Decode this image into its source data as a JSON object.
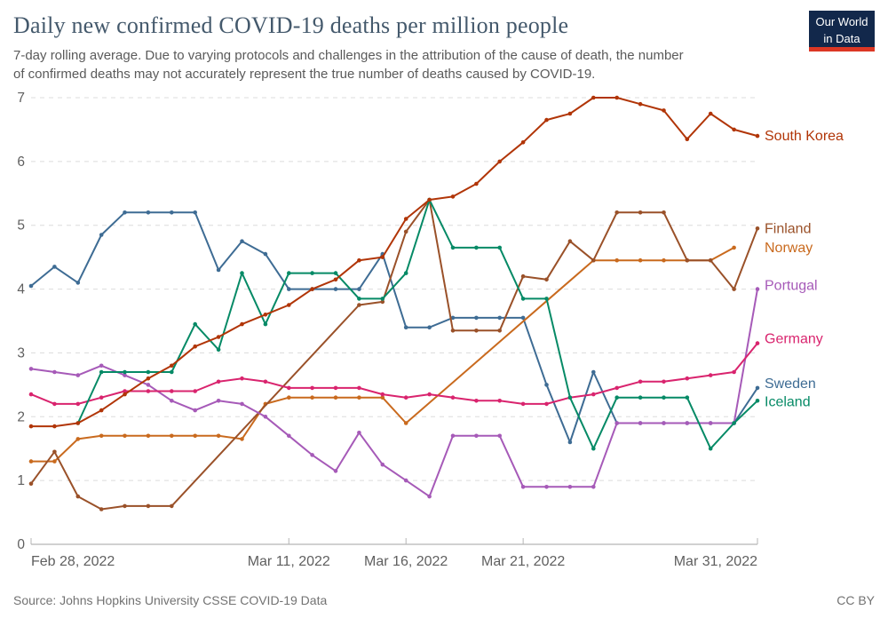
{
  "header": {
    "title": "Daily new confirmed COVID-19 deaths per million people",
    "subtitle_line1": "7-day rolling average. Due to varying protocols and challenges in the attribution of the cause of death, the number",
    "subtitle_line2": "of confirmed deaths may not accurately represent the true number of deaths caused by COVID-19.",
    "logo": {
      "line1": "Our World",
      "line2": "in Data",
      "bg_color": "#12284b",
      "stripe_color": "#dc3724"
    }
  },
  "footer": {
    "source": "Source: Johns Hopkins University CSSE COVID-19 Data",
    "license": "CC BY"
  },
  "chart_data": {
    "type": "line",
    "title": "Daily new confirmed COVID-19 deaths per million people",
    "ylim": [
      0,
      7
    ],
    "yticks": [
      0,
      1,
      2,
      3,
      4,
      5,
      6,
      7
    ],
    "grid": "horizontal-dashed",
    "legend_position": "right-of-line-ends",
    "x": [
      "Feb 28",
      "Mar 1",
      "Mar 2",
      "Mar 3",
      "Mar 4",
      "Mar 5",
      "Mar 6",
      "Mar 7",
      "Mar 8",
      "Mar 9",
      "Mar 10",
      "Mar 11",
      "Mar 12",
      "Mar 13",
      "Mar 14",
      "Mar 15",
      "Mar 16",
      "Mar 17",
      "Mar 18",
      "Mar 19",
      "Mar 20",
      "Mar 21",
      "Mar 22",
      "Mar 23",
      "Mar 24",
      "Mar 25",
      "Mar 26",
      "Mar 27",
      "Mar 28",
      "Mar 29",
      "Mar 30",
      "Mar 31"
    ],
    "xticks": [
      {
        "label": "Feb 28, 2022",
        "index": 0,
        "anchor": "start"
      },
      {
        "label": "Mar 11, 2022",
        "index": 11,
        "anchor": "middle"
      },
      {
        "label": "Mar 16, 2022",
        "index": 16,
        "anchor": "middle"
      },
      {
        "label": "Mar 21, 2022",
        "index": 21,
        "anchor": "middle"
      },
      {
        "label": "Mar 31, 2022",
        "index": 31,
        "anchor": "end"
      }
    ],
    "gap_note": "null values are data gaps drawn as straight interpolated segments without markers",
    "series": [
      {
        "id": "sweden",
        "name": "Sweden",
        "color": "#3e6c94",
        "label_dy": -5,
        "values": [
          4.05,
          4.35,
          4.1,
          4.85,
          5.2,
          5.2,
          5.2,
          5.2,
          4.3,
          4.75,
          4.55,
          4.0,
          4.0,
          4.0,
          4.0,
          4.55,
          3.4,
          3.4,
          3.55,
          3.55,
          3.55,
          3.55,
          2.5,
          1.6,
          2.7,
          1.9,
          1.9,
          1.9,
          1.9,
          1.9,
          1.9,
          2.45
        ]
      },
      {
        "id": "norway",
        "name": "Norway",
        "color": "#c96a1e",
        "label_dy": 0,
        "values": [
          1.3,
          1.3,
          1.65,
          1.7,
          1.7,
          1.7,
          1.7,
          1.7,
          1.7,
          1.65,
          2.2,
          2.3,
          2.3,
          2.3,
          2.3,
          2.3,
          1.9,
          null,
          null,
          null,
          null,
          null,
          null,
          null,
          4.45,
          4.45,
          4.45,
          4.45,
          4.45,
          4.45,
          4.65,
          null
        ]
      },
      {
        "id": "finland",
        "name": "Finland",
        "color": "#9a5129",
        "label_dy": 0,
        "values": [
          0.95,
          1.45,
          0.75,
          0.55,
          0.6,
          0.6,
          0.6,
          null,
          null,
          null,
          null,
          null,
          null,
          null,
          3.75,
          3.8,
          4.9,
          5.4,
          3.35,
          3.35,
          3.35,
          4.2,
          4.15,
          4.75,
          4.45,
          5.2,
          5.2,
          5.2,
          4.45,
          4.45,
          4.0,
          4.95
        ]
      },
      {
        "id": "portugal",
        "name": "Portugal",
        "color": "#a65ab8",
        "label_dy": -4,
        "values": [
          2.75,
          2.7,
          2.65,
          2.8,
          2.65,
          2.5,
          2.25,
          2.1,
          2.25,
          2.2,
          2.0,
          1.7,
          1.4,
          1.15,
          1.75,
          1.25,
          1.0,
          0.75,
          1.7,
          1.7,
          1.7,
          0.9,
          0.9,
          0.9,
          0.9,
          1.9,
          1.9,
          1.9,
          1.9,
          1.9,
          1.9,
          4.0
        ]
      },
      {
        "id": "germany",
        "name": "Germany",
        "color": "#d9246e",
        "label_dy": -5,
        "values": [
          2.35,
          2.2,
          2.2,
          2.3,
          2.4,
          2.4,
          2.4,
          2.4,
          2.55,
          2.6,
          2.55,
          2.45,
          2.45,
          2.45,
          2.45,
          2.35,
          2.3,
          2.35,
          2.3,
          2.25,
          2.25,
          2.2,
          2.2,
          2.3,
          2.35,
          2.45,
          2.55,
          2.55,
          2.6,
          2.65,
          2.7,
          3.15
        ]
      },
      {
        "id": "iceland",
        "name": "Iceland",
        "color": "#068a66",
        "label_dy": 1,
        "values": [
          null,
          null,
          1.9,
          2.7,
          2.7,
          2.7,
          2.7,
          3.45,
          3.05,
          4.25,
          3.45,
          4.25,
          4.25,
          4.25,
          3.85,
          3.85,
          4.25,
          5.4,
          4.65,
          4.65,
          4.65,
          3.85,
          3.85,
          2.3,
          1.5,
          2.3,
          2.3,
          2.3,
          2.3,
          1.5,
          1.9,
          2.25
        ]
      },
      {
        "id": "south-korea",
        "name": "South Korea",
        "color": "#b13507",
        "label_dy": 0,
        "values": [
          1.85,
          1.85,
          1.9,
          2.1,
          2.35,
          2.6,
          2.8,
          3.1,
          3.25,
          3.45,
          3.6,
          3.75,
          4.0,
          4.15,
          4.45,
          4.5,
          5.1,
          5.4,
          5.45,
          5.65,
          6.0,
          6.3,
          6.65,
          6.75,
          7.0,
          7.0,
          6.9,
          6.8,
          6.35,
          6.75,
          6.5,
          6.4
        ]
      }
    ]
  }
}
